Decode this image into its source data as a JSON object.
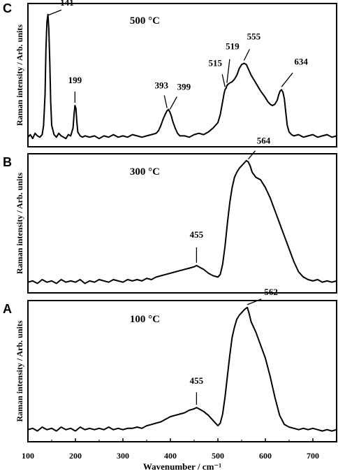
{
  "chart_data": [
    {
      "type": "line",
      "panel_letter": "C",
      "title": "500 °C",
      "ylabel": "Raman intensity / Arb. units",
      "xlabel": "",
      "xlim": [
        100,
        750
      ],
      "ylim": [
        0,
        1
      ],
      "grid": false,
      "series": [
        {
          "x": [
            100,
            105,
            110,
            115,
            120,
            125,
            130,
            133,
            136,
            138,
            140,
            142,
            144,
            146,
            148,
            150,
            155,
            160,
            165,
            170,
            175,
            180,
            185,
            190,
            195,
            197,
            199,
            201,
            203,
            205,
            210,
            215,
            220,
            230,
            240,
            250,
            260,
            270,
            280,
            290,
            300,
            310,
            320,
            330,
            340,
            350,
            360,
            370,
            375,
            380,
            385,
            390,
            393,
            396,
            399,
            402,
            405,
            410,
            415,
            420,
            430,
            440,
            450,
            460,
            470,
            480,
            490,
            500,
            505,
            510,
            513,
            515,
            517,
            519,
            521,
            525,
            530,
            535,
            540,
            545,
            550,
            555,
            560,
            565,
            570,
            575,
            580,
            590,
            600,
            605,
            610,
            615,
            620,
            625,
            628,
            631,
            634,
            637,
            640,
            643,
            646,
            650,
            655,
            660,
            670,
            680,
            690,
            700,
            710,
            720,
            730,
            740,
            750
          ],
          "y": [
            0.03,
            0.05,
            0.02,
            0.06,
            0.04,
            0.03,
            0.05,
            0.12,
            0.35,
            0.7,
            0.9,
            0.96,
            0.85,
            0.6,
            0.3,
            0.12,
            0.05,
            0.03,
            0.06,
            0.04,
            0.03,
            0.02,
            0.05,
            0.04,
            0.1,
            0.2,
            0.27,
            0.25,
            0.15,
            0.07,
            0.04,
            0.03,
            0.04,
            0.03,
            0.04,
            0.02,
            0.04,
            0.03,
            0.05,
            0.03,
            0.04,
            0.03,
            0.05,
            0.04,
            0.03,
            0.04,
            0.05,
            0.06,
            0.08,
            0.12,
            0.17,
            0.21,
            0.23,
            0.24,
            0.22,
            0.19,
            0.15,
            0.1,
            0.06,
            0.04,
            0.04,
            0.03,
            0.05,
            0.06,
            0.05,
            0.07,
            0.1,
            0.14,
            0.2,
            0.3,
            0.36,
            0.39,
            0.4,
            0.42,
            0.43,
            0.44,
            0.45,
            0.47,
            0.5,
            0.55,
            0.58,
            0.59,
            0.58,
            0.54,
            0.5,
            0.47,
            0.44,
            0.38,
            0.33,
            0.3,
            0.28,
            0.27,
            0.28,
            0.31,
            0.35,
            0.38,
            0.39,
            0.37,
            0.32,
            0.22,
            0.12,
            0.07,
            0.05,
            0.04,
            0.05,
            0.03,
            0.04,
            0.05,
            0.03,
            0.04,
            0.05,
            0.03,
            0.04
          ]
        }
      ],
      "annotations": [
        {
          "text": "141",
          "x": 141
        },
        {
          "text": "199",
          "x": 199
        },
        {
          "text": "393",
          "x": 393
        },
        {
          "text": "399",
          "x": 399
        },
        {
          "text": "515",
          "x": 515
        },
        {
          "text": "519",
          "x": 519
        },
        {
          "text": "555",
          "x": 555
        },
        {
          "text": "634",
          "x": 634
        }
      ]
    },
    {
      "type": "line",
      "panel_letter": "B",
      "title": "300 °C",
      "ylabel": "Raman intensity / Arb. units",
      "xlabel": "",
      "xlim": [
        100,
        750
      ],
      "ylim": [
        0,
        1
      ],
      "grid": false,
      "series": [
        {
          "x": [
            100,
            110,
            120,
            130,
            140,
            150,
            160,
            170,
            180,
            190,
            200,
            210,
            220,
            230,
            240,
            250,
            260,
            270,
            280,
            290,
            300,
            310,
            320,
            330,
            340,
            350,
            360,
            370,
            380,
            390,
            400,
            410,
            420,
            430,
            440,
            450,
            455,
            460,
            465,
            470,
            480,
            490,
            500,
            505,
            510,
            515,
            520,
            525,
            530,
            535,
            540,
            545,
            550,
            555,
            560,
            564,
            568,
            572,
            576,
            580,
            590,
            600,
            610,
            620,
            630,
            640,
            650,
            660,
            670,
            680,
            690,
            700,
            710,
            720,
            730,
            740,
            750
          ],
          "y": [
            0.04,
            0.05,
            0.03,
            0.06,
            0.04,
            0.05,
            0.03,
            0.06,
            0.04,
            0.05,
            0.04,
            0.06,
            0.03,
            0.05,
            0.04,
            0.06,
            0.05,
            0.04,
            0.06,
            0.05,
            0.04,
            0.06,
            0.05,
            0.06,
            0.05,
            0.07,
            0.06,
            0.08,
            0.09,
            0.1,
            0.11,
            0.12,
            0.13,
            0.14,
            0.15,
            0.16,
            0.17,
            0.16,
            0.15,
            0.14,
            0.11,
            0.09,
            0.08,
            0.1,
            0.18,
            0.32,
            0.5,
            0.66,
            0.78,
            0.86,
            0.9,
            0.93,
            0.95,
            0.97,
            0.99,
            0.98,
            0.95,
            0.9,
            0.88,
            0.86,
            0.84,
            0.78,
            0.7,
            0.6,
            0.5,
            0.4,
            0.3,
            0.2,
            0.12,
            0.08,
            0.06,
            0.05,
            0.06,
            0.04,
            0.05,
            0.04,
            0.05
          ]
        }
      ],
      "annotations": [
        {
          "text": "455",
          "x": 455
        },
        {
          "text": "564",
          "x": 564
        }
      ]
    },
    {
      "type": "line",
      "panel_letter": "A",
      "title": "100 °C",
      "ylabel": "Raman intensity / Arb. units",
      "xlabel": "Wavenumber / cm⁻¹",
      "xlim": [
        100,
        750
      ],
      "ylim": [
        0,
        1
      ],
      "xticks": [
        100,
        200,
        300,
        400,
        500,
        600,
        700
      ],
      "grid": false,
      "series": [
        {
          "x": [
            100,
            110,
            120,
            130,
            140,
            150,
            160,
            170,
            180,
            190,
            200,
            210,
            220,
            230,
            240,
            250,
            260,
            270,
            280,
            290,
            300,
            310,
            320,
            330,
            340,
            350,
            360,
            370,
            380,
            390,
            400,
            410,
            420,
            430,
            440,
            450,
            455,
            460,
            465,
            470,
            480,
            490,
            500,
            505,
            510,
            515,
            520,
            525,
            530,
            535,
            540,
            545,
            550,
            555,
            558,
            562,
            566,
            570,
            575,
            580,
            590,
            600,
            610,
            620,
            630,
            640,
            650,
            660,
            670,
            680,
            690,
            700,
            710,
            720,
            730,
            740,
            750
          ],
          "y": [
            0.05,
            0.06,
            0.04,
            0.07,
            0.05,
            0.06,
            0.04,
            0.07,
            0.05,
            0.06,
            0.04,
            0.07,
            0.05,
            0.06,
            0.05,
            0.06,
            0.05,
            0.07,
            0.05,
            0.06,
            0.05,
            0.06,
            0.06,
            0.07,
            0.06,
            0.08,
            0.09,
            0.1,
            0.11,
            0.13,
            0.15,
            0.16,
            0.17,
            0.18,
            0.2,
            0.21,
            0.22,
            0.21,
            0.2,
            0.19,
            0.16,
            0.12,
            0.08,
            0.1,
            0.17,
            0.3,
            0.46,
            0.62,
            0.76,
            0.84,
            0.9,
            0.93,
            0.95,
            0.97,
            0.98,
            0.99,
            0.94,
            0.88,
            0.84,
            0.8,
            0.7,
            0.6,
            0.46,
            0.3,
            0.16,
            0.09,
            0.07,
            0.06,
            0.05,
            0.06,
            0.05,
            0.06,
            0.05,
            0.04,
            0.05,
            0.04,
            0.05
          ]
        }
      ],
      "annotations": [
        {
          "text": "455",
          "x": 455
        },
        {
          "text": "562",
          "x": 562
        }
      ]
    }
  ]
}
